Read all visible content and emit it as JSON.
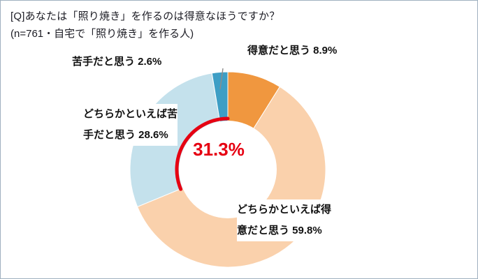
{
  "chart_data": {
    "type": "pie",
    "donut": true,
    "title": "[Q]あなたは「照り焼き」を作るのは得意なほうですか？",
    "n_label": "(n=761・自宅で「照り焼き」を作る人)",
    "categories": [
      "得意だと思う",
      "どちらかといえば得意だと思う",
      "どちらかといえば苦手だと思う",
      "苦手だと思う"
    ],
    "values": [
      8.9,
      59.8,
      28.6,
      2.6
    ],
    "colors": [
      "#F0973F",
      "#FAD1AC",
      "#C4E1EC",
      "#3D9EC5"
    ],
    "start_angle_deg": 0,
    "direction": "clockwise",
    "legend_position": "none",
    "highlight": {
      "label": "31.3%",
      "value": 31.3,
      "color": "#E60012"
    },
    "labels": [
      {
        "lines": [
          "得意だと思う 8.9%"
        ]
      },
      {
        "lines": [
          "どちらかといえば得",
          "意だと思う 59.8%"
        ]
      },
      {
        "lines": [
          "どちらかといえば苦",
          "手だと思う 28.6%"
        ]
      },
      {
        "lines": [
          "苦手だと思う 2.6%"
        ]
      }
    ]
  }
}
